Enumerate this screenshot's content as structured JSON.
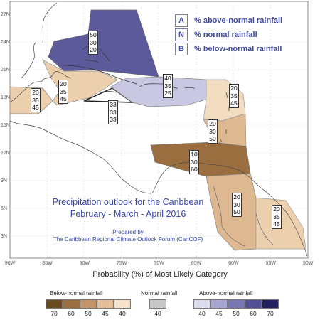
{
  "legend": {
    "items": [
      {
        "key": "A",
        "text": "% above-normal rainfall"
      },
      {
        "key": "N",
        "text": "% normal rainfall"
      },
      {
        "key": "B",
        "text": "% below-normal rainfall"
      }
    ]
  },
  "title_line1": "Precipitation outlook for the Caribbean",
  "title_line2": "February - March - April 2016",
  "prepared_by": "Prepared by",
  "organization": "The Caribbean Regional Climate Outlook Forum (CariCOF)",
  "axes": {
    "x_ticks": [
      "90W",
      "85W",
      "80W",
      "75W",
      "70W",
      "65W",
      "60W",
      "55W",
      "50W"
    ],
    "y_ticks": [
      "27N",
      "24N",
      "21N",
      "18N",
      "15N",
      "12N",
      "9N",
      "6N",
      "3N"
    ]
  },
  "regions": [
    {
      "name": "bahamas-north",
      "values": [
        "50",
        "30",
        "20"
      ],
      "color": "#5d5a9c"
    },
    {
      "name": "cuba-west",
      "values": [
        "20",
        "35",
        "45"
      ],
      "color": "#ecd0ae"
    },
    {
      "name": "jamaica-west",
      "values": [
        "20",
        "35",
        "45"
      ],
      "color": "#ecd0ae"
    },
    {
      "name": "jamaica-triangle",
      "values": [
        "33",
        "33",
        "33"
      ],
      "color": "#ffffff"
    },
    {
      "name": "hispaniola-puerto-rico",
      "values": [
        "40",
        "35",
        "25"
      ],
      "color": "#c9c8e3"
    },
    {
      "name": "leeward-islands",
      "values": [
        "20",
        "35",
        "45"
      ],
      "color": "#f2dcc0"
    },
    {
      "name": "windward-islands",
      "values": [
        "20",
        "30",
        "50"
      ],
      "color": "#deb890"
    },
    {
      "name": "southern-caribbean",
      "values": [
        "10",
        "30",
        "60"
      ],
      "color": "#9a6e3e"
    },
    {
      "name": "guyana-interior",
      "values": [
        "20",
        "30",
        "50"
      ],
      "color": "#deb890"
    },
    {
      "name": "french-guiana",
      "values": [
        "20",
        "35",
        "45"
      ],
      "color": "#ecd0ae"
    }
  ],
  "probability_title": "Probability (%) of Most Likely Category",
  "categories": {
    "below": {
      "label": "Below-normal rainfall",
      "levels": [
        "70",
        "60",
        "50",
        "45",
        "40"
      ],
      "colors": [
        "#6b4a21",
        "#9a6e3e",
        "#c5956a",
        "#e2bf99",
        "#f6e3cc"
      ]
    },
    "normal": {
      "label": "Normal rainfall",
      "levels": [
        "40"
      ],
      "colors": [
        "#c8c8c8"
      ]
    },
    "above": {
      "label": "Above-normal rainfall",
      "levels": [
        "40",
        "45",
        "50",
        "60",
        "70"
      ],
      "colors": [
        "#dcdcee",
        "#a7a7d1",
        "#7a78b3",
        "#524f95",
        "#23205f"
      ]
    }
  }
}
